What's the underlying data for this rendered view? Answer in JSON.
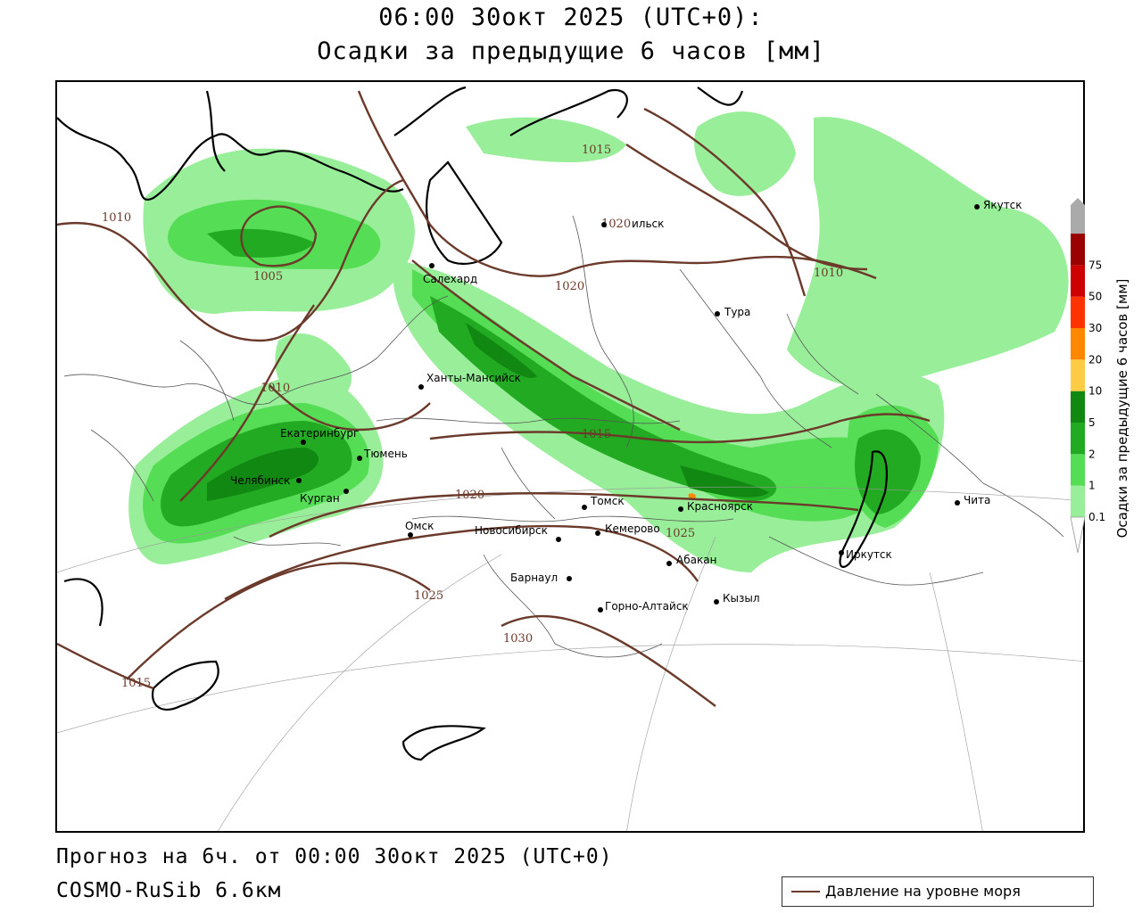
{
  "header": {
    "line1": "06:00 30окт 2025 (UTC+0):",
    "line2": "Осадки за предыдущие 6 часов [мм]"
  },
  "footer": {
    "forecast": "Прогноз на 6ч. от 00:00 30окт 2025 (UTC+0)",
    "model": "COSMO-RuSib 6.6км"
  },
  "legend": {
    "pressure_label": "Давление на уровне моря",
    "pressure_color": "#6b3a2a"
  },
  "colorbar": {
    "title": "Осадки за предыдущие 6 часов [мм]",
    "ticks": [
      "0.1",
      "1",
      "2",
      "5",
      "10",
      "20",
      "30",
      "50",
      "75"
    ],
    "colors": [
      "#99ee99",
      "#55dd55",
      "#22aa22",
      "#118811",
      "#ffcc44",
      "#ff8800",
      "#ff3300",
      "#cc0000",
      "#990000"
    ]
  },
  "cities": [
    {
      "name": "Якутск"
    },
    {
      "name": "Салехард"
    },
    {
      "name": "Тура"
    },
    {
      "name": "Ханты-Мансийск"
    },
    {
      "name": "Екатеринбург"
    },
    {
      "name": "Тюмень"
    },
    {
      "name": "Челябинск"
    },
    {
      "name": "Курган"
    },
    {
      "name": "Омск"
    },
    {
      "name": "Новосибирск"
    },
    {
      "name": "Томск"
    },
    {
      "name": "Кемерово"
    },
    {
      "name": "Красноярск"
    },
    {
      "name": "Абакан"
    },
    {
      "name": "Барнаул"
    },
    {
      "name": "Горно-Алтайск"
    },
    {
      "name": "Кызыл"
    },
    {
      "name": "Иркутск"
    },
    {
      "name": "Чита"
    }
  ],
  "extra_labels": {
    "ilsk_suffix": "ильск"
  },
  "isobars": [
    "1010",
    "1005",
    "1010",
    "1015",
    "1020",
    "1020",
    "1010",
    "1015",
    "1020",
    "1025",
    "1025",
    "1030",
    "1015"
  ]
}
